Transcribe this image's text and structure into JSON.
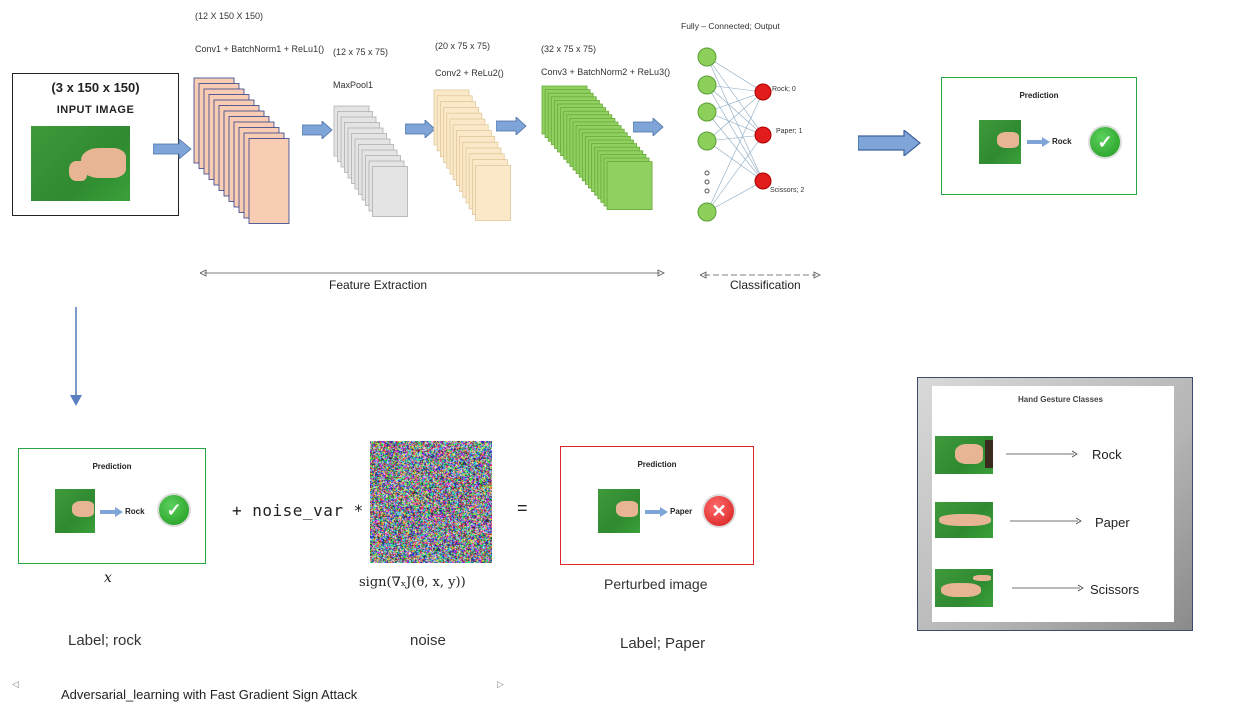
{
  "top": {
    "input": {
      "dims": "(3 x 150 x 150)",
      "title": "INPUT IMAGE"
    },
    "conv1": {
      "dims": "(12 X 150 X 150)",
      "label": "Conv1 + BatchNorm1 + ReLu1()"
    },
    "maxpool": {
      "dims": "(12 x 75 x 75)",
      "label": "MaxPool1"
    },
    "conv2": {
      "dims": "(20 x 75 x 75)",
      "label": "Conv2 + ReLu2()"
    },
    "conv3": {
      "dims": "(32 x 75 x 75)",
      "label": "Conv3 + BatchNorm2 + ReLu3()"
    },
    "fc": {
      "title": "Fully – Connected; Output",
      "outputs": [
        "Rock; 0",
        "Paper; 1",
        "Scissors; 2"
      ]
    },
    "prediction": {
      "title": "Prediction",
      "label": "Rock"
    },
    "feature_extraction": "Feature Extraction",
    "classification": "Classification"
  },
  "bottom": {
    "pred_clean": {
      "title": "Prediction",
      "label": "Rock"
    },
    "x_symbol": "x",
    "label_clean": "Label; rock",
    "operator_plus": "+ noise_var *",
    "noise_formula": "sign(∇ₓJ(θ, x, y))",
    "noise_label": "noise",
    "equals": "=",
    "pred_perturbed": {
      "title": "Prediction",
      "label": "Paper"
    },
    "perturbed_label": "Perturbed image",
    "label_perturbed": "Label; Paper",
    "caption": "Adversarial_learning with Fast Gradient Sign Attack"
  },
  "classes": {
    "title": "Hand Gesture Classes",
    "items": [
      "Rock",
      "Paper",
      "Scissors"
    ]
  },
  "colors": {
    "green": "#26a640",
    "red": "#e0262a",
    "arrow": "#7fa5d8"
  }
}
